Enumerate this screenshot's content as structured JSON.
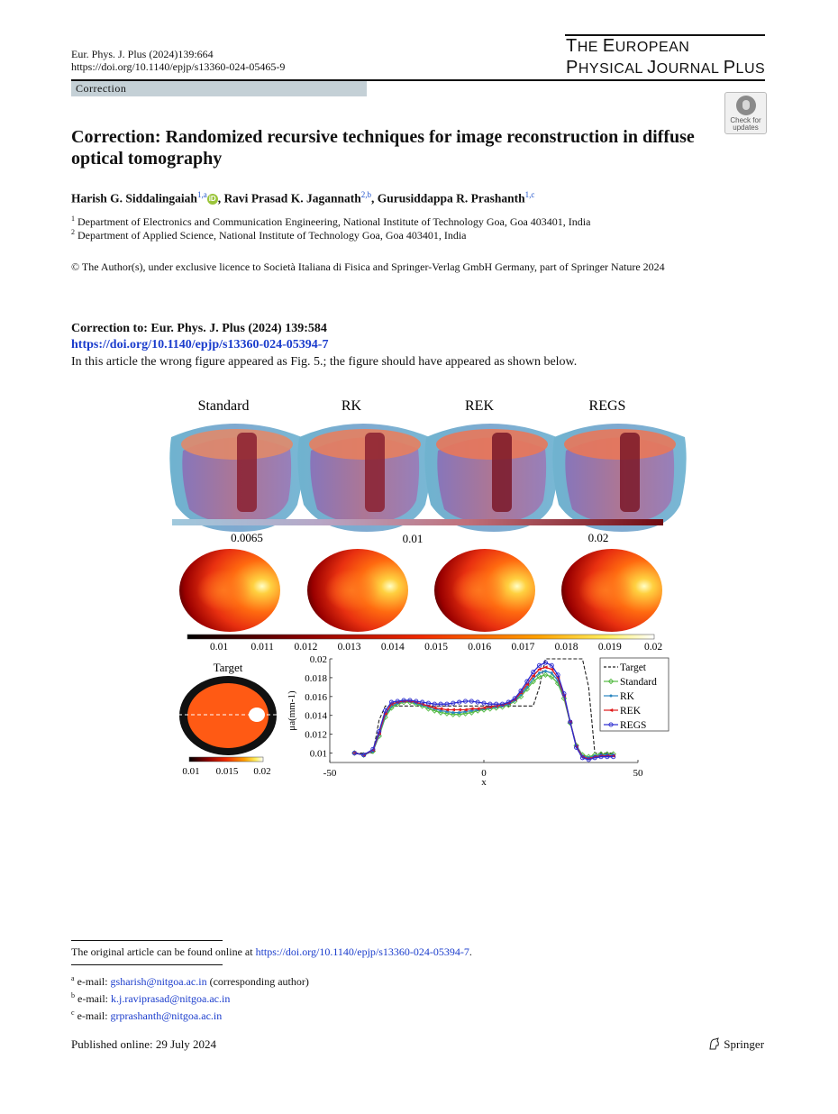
{
  "header": {
    "citation": "Eur. Phys. J. Plus (2024)139:664",
    "doi": "https://doi.org/10.1140/epjp/s13360-024-05465-9",
    "journal_line1_a": "T",
    "journal_line1_b": "HE ",
    "journal_line1_c": "E",
    "journal_line1_d": "UROPEAN",
    "journal_line2_a": "P",
    "journal_line2_b": "HYSICAL ",
    "journal_line2_c": "J",
    "journal_line2_d": "OURNAL ",
    "journal_line2_e": "P",
    "journal_line2_f": "LUS",
    "section": "Correction",
    "badge_line1": "Check for",
    "badge_line2": "updates"
  },
  "article": {
    "title": "Correction: Randomized recursive techniques for image reconstruction in diffuse optical tomography",
    "author1": "Harish G. Siddalingaiah",
    "author1_sup": "1,a",
    "author2": "Ravi Prasad K. Jagannath",
    "author2_sup": "2,b",
    "author3": "Gurusiddappa R. Prashanth",
    "author3_sup": "1,c",
    "aff1_num": "1",
    "aff1": "Department of Electronics and Communication Engineering, National Institute of Technology Goa, Goa 403401, India",
    "aff2_num": "2",
    "aff2": "Department of Applied Science, National Institute of Technology Goa, Goa 403401, India",
    "copyright": "© The Author(s), under exclusive licence to Società Italiana di Fisica and Springer-Verlag GmbH Germany, part of Springer Nature 2024",
    "correction_to": "Correction to: Eur. Phys. J. Plus (2024) 139:584",
    "correction_doi": "https://doi.org/10.1140/epjp/s13360-024-05394-7",
    "body": "In this article the wrong figure appeared as Fig. 5.; the figure should have appeared as shown below."
  },
  "figure": {
    "panel_labels": [
      "Standard",
      "RK",
      "REK",
      "REGS"
    ],
    "volume_colorbar_ticks": [
      "0.0065",
      "0.01",
      "0.02"
    ],
    "slice_colorbar_ticks": [
      "0.01",
      "0.011",
      "0.012",
      "0.013",
      "0.014",
      "0.015",
      "0.016",
      "0.017",
      "0.018",
      "0.019",
      "0.02"
    ],
    "target_label": "Target",
    "target_colorbar_ticks": [
      "0.01",
      "0.015",
      "0.02"
    ],
    "colors": {
      "target": "#222222",
      "standard": "#55bb44",
      "rk": "#2a86c0",
      "rek": "#e01a1a",
      "regs": "#2a2ad0",
      "volume_low": "#8fc3d8",
      "volume_high": "#6e0a12"
    }
  },
  "chart_data": {
    "type": "line",
    "xlabel": "x",
    "ylabel": "μa(mm-1)",
    "xlim": [
      -50,
      50
    ],
    "ylim": [
      0.009,
      0.02
    ],
    "x_ticks": [
      "-50",
      "0",
      "50"
    ],
    "y_ticks": [
      "0.01",
      "0.012",
      "0.014",
      "0.016",
      "0.018",
      "0.02"
    ],
    "legend_position": "top-right",
    "x": [
      -42,
      -39,
      -36,
      -34,
      -32,
      -30,
      -28,
      -26,
      -24,
      -22,
      -20,
      -18,
      -16,
      -14,
      -12,
      -10,
      -8,
      -6,
      -4,
      -2,
      0,
      2,
      4,
      6,
      8,
      10,
      12,
      14,
      16,
      18,
      20,
      22,
      24,
      26,
      28,
      30,
      32,
      34,
      36,
      38,
      40,
      42
    ],
    "series": [
      {
        "name": "Target",
        "values": [
          0.01,
          0.01,
          0.01,
          0.0135,
          0.015,
          0.015,
          0.015,
          0.015,
          0.015,
          0.015,
          0.015,
          0.015,
          0.015,
          0.015,
          0.015,
          0.015,
          0.015,
          0.015,
          0.015,
          0.015,
          0.015,
          0.015,
          0.015,
          0.015,
          0.015,
          0.015,
          0.015,
          0.015,
          0.015,
          0.017,
          0.02,
          0.02,
          0.02,
          0.02,
          0.02,
          0.02,
          0.02,
          0.017,
          0.01,
          0.01,
          0.01,
          0.01
        ]
      },
      {
        "name": "Standard",
        "values": [
          0.01,
          0.0098,
          0.0102,
          0.0118,
          0.0138,
          0.0148,
          0.0152,
          0.0154,
          0.0154,
          0.0152,
          0.015,
          0.0147,
          0.0145,
          0.0143,
          0.0142,
          0.0141,
          0.0141,
          0.0142,
          0.0143,
          0.0145,
          0.0146,
          0.0147,
          0.0148,
          0.0149,
          0.0151,
          0.0155,
          0.016,
          0.0168,
          0.0176,
          0.0181,
          0.0183,
          0.0181,
          0.0174,
          0.0158,
          0.0132,
          0.0108,
          0.0098,
          0.0096,
          0.0098,
          0.0099,
          0.0099,
          0.0099
        ]
      },
      {
        "name": "RK",
        "values": [
          0.01,
          0.0098,
          0.0102,
          0.0119,
          0.014,
          0.015,
          0.0153,
          0.0155,
          0.0155,
          0.0153,
          0.0151,
          0.0149,
          0.0147,
          0.0145,
          0.0144,
          0.0143,
          0.0143,
          0.0144,
          0.0145,
          0.0146,
          0.0147,
          0.0148,
          0.0149,
          0.015,
          0.0152,
          0.0156,
          0.0162,
          0.017,
          0.0179,
          0.0185,
          0.0187,
          0.0185,
          0.0177,
          0.016,
          0.0133,
          0.0108,
          0.0097,
          0.0095,
          0.0097,
          0.0098,
          0.0098,
          0.0098
        ]
      },
      {
        "name": "REK",
        "values": [
          0.01,
          0.0098,
          0.0103,
          0.0121,
          0.0142,
          0.0152,
          0.0154,
          0.0155,
          0.0155,
          0.0154,
          0.0152,
          0.015,
          0.0148,
          0.0147,
          0.0146,
          0.0146,
          0.0146,
          0.0146,
          0.0147,
          0.0147,
          0.0148,
          0.0149,
          0.015,
          0.0151,
          0.0153,
          0.0157,
          0.0164,
          0.0173,
          0.0182,
          0.0189,
          0.0191,
          0.0189,
          0.018,
          0.0161,
          0.0133,
          0.0107,
          0.0096,
          0.0094,
          0.0096,
          0.0097,
          0.0097,
          0.0097
        ]
      },
      {
        "name": "REGS",
        "values": [
          0.01,
          0.0098,
          0.0104,
          0.0123,
          0.0145,
          0.0154,
          0.0155,
          0.0156,
          0.0156,
          0.0155,
          0.0154,
          0.0153,
          0.0152,
          0.0152,
          0.0152,
          0.0153,
          0.0154,
          0.0155,
          0.0155,
          0.0154,
          0.0153,
          0.0152,
          0.0152,
          0.0152,
          0.0154,
          0.0158,
          0.0166,
          0.0176,
          0.0186,
          0.0193,
          0.0196,
          0.0193,
          0.0183,
          0.0163,
          0.0133,
          0.0106,
          0.0095,
          0.0093,
          0.0095,
          0.0096,
          0.0096,
          0.0096
        ]
      }
    ]
  },
  "footnotes": {
    "original_prefix": "The original article can be found online at ",
    "original_link": "https://doi.org/10.1140/epjp/s13360-024-05394-7",
    "original_suffix": ".",
    "a_sup": "a",
    "a_label": "e-mail: ",
    "a_email": "gsharish@nitgoa.ac.in",
    "a_note": " (corresponding author)",
    "b_sup": "b",
    "b_label": "e-mail: ",
    "b_email": "k.j.raviprasad@nitgoa.ac.in",
    "c_sup": "c",
    "c_label": "e-mail: ",
    "c_email": "grprashanth@nitgoa.ac.in"
  },
  "footer": {
    "published": "Published online: 29 July 2024",
    "publisher": "Springer"
  }
}
